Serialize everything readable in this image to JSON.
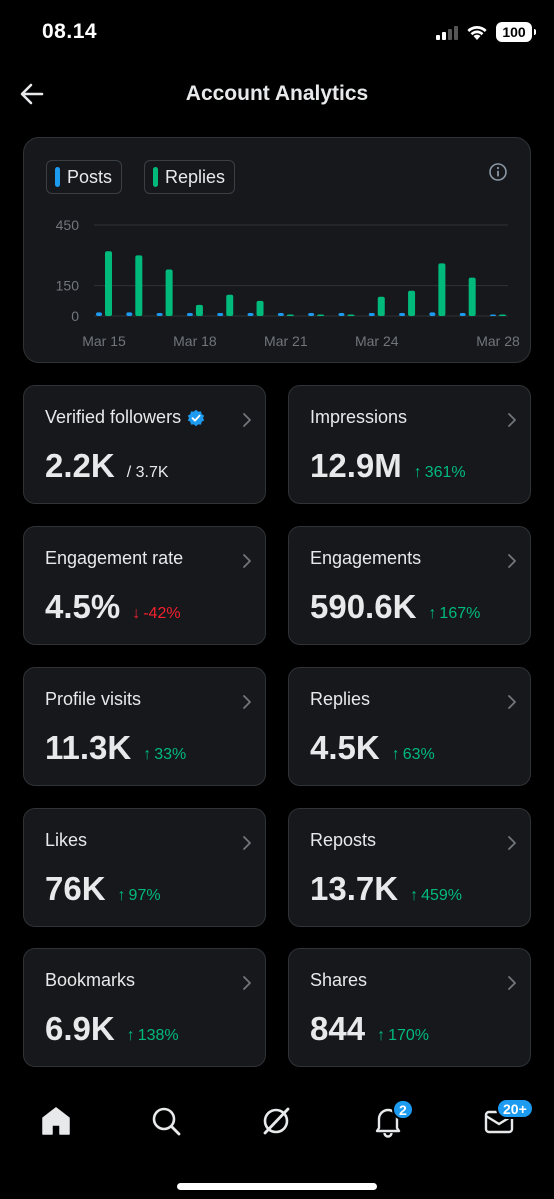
{
  "status_bar": {
    "time": "08.14",
    "battery": "100"
  },
  "header": {
    "title": "Account Analytics"
  },
  "legend": [
    {
      "label": "Posts",
      "color": "#1d9bf0"
    },
    {
      "label": "Replies",
      "color": "#00ba7c"
    }
  ],
  "chart_data": {
    "type": "bar",
    "x": [
      "Mar 15",
      "Mar 16",
      "Mar 17",
      "Mar 18",
      "Mar 19",
      "Mar 20",
      "Mar 21",
      "Mar 22",
      "Mar 23",
      "Mar 24",
      "Mar 25",
      "Mar 26",
      "Mar 27",
      "Mar 28"
    ],
    "x_tick_labels": [
      "Mar 15",
      "Mar 18",
      "Mar 21",
      "Mar 24",
      "Mar 28"
    ],
    "series": [
      {
        "name": "Posts",
        "color": "#1d9bf0",
        "values": [
          18,
          18,
          8,
          5,
          5,
          5,
          3,
          3,
          3,
          10,
          12,
          18,
          10,
          0
        ]
      },
      {
        "name": "Replies",
        "color": "#00ba7c",
        "values": [
          320,
          300,
          230,
          55,
          105,
          75,
          0,
          0,
          0,
          95,
          125,
          260,
          190,
          0
        ]
      }
    ],
    "yticks": [
      "450",
      "150",
      "0"
    ],
    "ylim": [
      0,
      450
    ],
    "grid": true
  },
  "cards": [
    {
      "label": "Verified followers",
      "value": "2.2K",
      "sub": "/ 3.7K",
      "verified": true
    },
    {
      "label": "Impressions",
      "value": "12.9M",
      "change": "361%",
      "direction": "up"
    },
    {
      "label": "Engagement rate",
      "value": "4.5%",
      "change": "-42%",
      "direction": "down"
    },
    {
      "label": "Engagements",
      "value": "590.6K",
      "change": "167%",
      "direction": "up"
    },
    {
      "label": "Profile visits",
      "value": "11.3K",
      "change": "33%",
      "direction": "up"
    },
    {
      "label": "Replies",
      "value": "4.5K",
      "change": "63%",
      "direction": "up"
    },
    {
      "label": "Likes",
      "value": "76K",
      "change": "97%",
      "direction": "up"
    },
    {
      "label": "Reposts",
      "value": "13.7K",
      "change": "459%",
      "direction": "up"
    },
    {
      "label": "Bookmarks",
      "value": "6.9K",
      "change": "138%",
      "direction": "up"
    },
    {
      "label": "Shares",
      "value": "844",
      "change": "170%",
      "direction": "up"
    }
  ],
  "nav": {
    "items": [
      "home-icon",
      "search-icon",
      "grok-icon",
      "notifications-icon",
      "messages-icon"
    ],
    "notifications_badge": "2",
    "messages_badge": "20+"
  },
  "colors": {
    "accent": "#1d9bf0",
    "up": "#00ba7c",
    "down": "#f4212e"
  }
}
